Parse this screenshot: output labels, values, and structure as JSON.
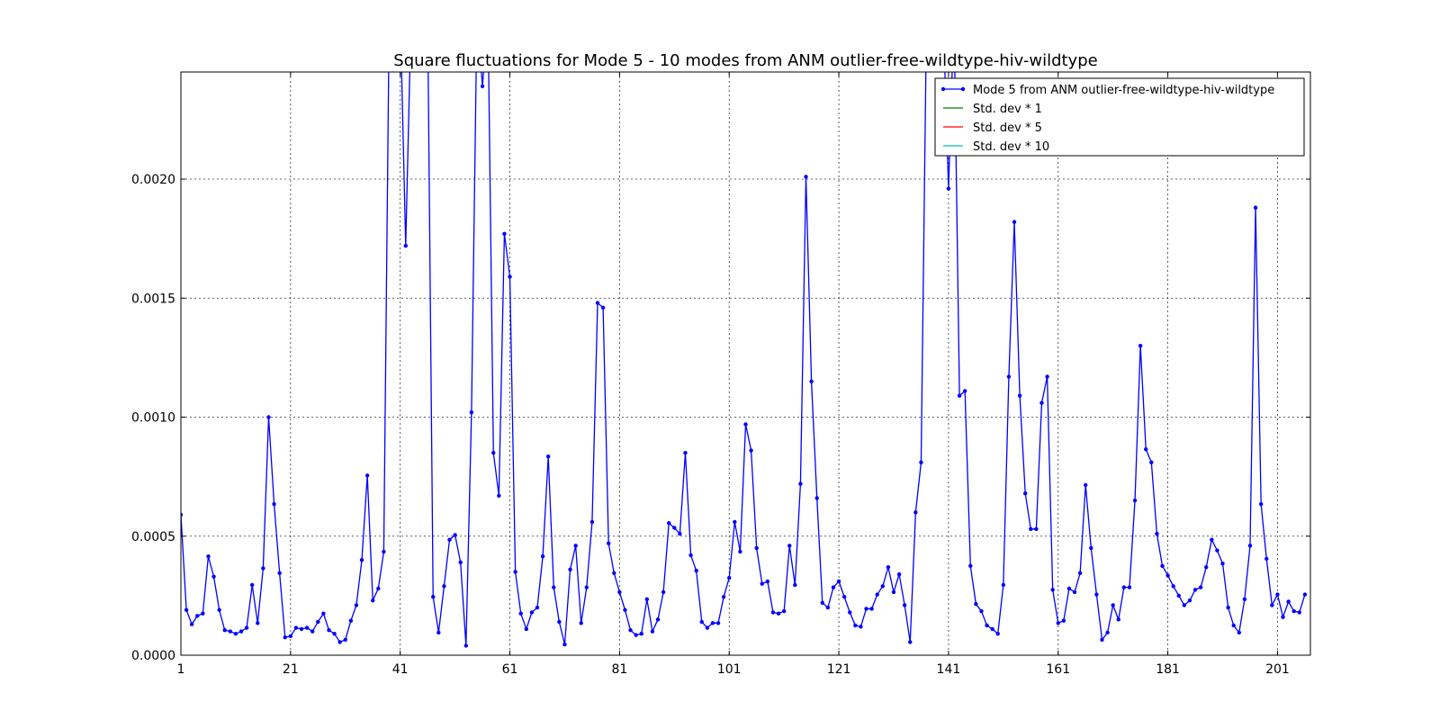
{
  "chart_data": {
    "type": "line",
    "title": "Square fluctuations for Mode 5 - 10 modes from ANM outlier-free-wildtype-hiv-wildtype",
    "xlabel": "",
    "ylabel": "",
    "xlim": [
      1,
      207
    ],
    "ylim": [
      0,
      0.00245
    ],
    "x_ticks": [
      1,
      21,
      41,
      61,
      81,
      101,
      121,
      141,
      161,
      181,
      201
    ],
    "x_tick_labels": [
      "1",
      "21",
      "41",
      "61",
      "81",
      "101",
      "121",
      "141",
      "161",
      "181",
      "201"
    ],
    "y_ticks": [
      0,
      0.0005,
      0.001,
      0.0015,
      0.002
    ],
    "y_tick_labels": [
      "0.0000",
      "0.0005",
      "0.0010",
      "0.0015",
      "0.0020"
    ],
    "grid": true,
    "legend_position": "top-right",
    "series": [
      {
        "name": "Mode 5 from ANM outlier-free-wildtype-hiv-wildtype",
        "color": "#0000ff",
        "marker": "dot",
        "x_start": 1,
        "values": [
          0.00059,
          0.00019,
          0.00013,
          0.000165,
          0.000175,
          0.000415,
          0.00033,
          0.00019,
          0.000105,
          0.0001,
          9e-05,
          0.0001,
          0.000115,
          0.000295,
          0.000135,
          0.000365,
          0.001,
          0.000635,
          0.000345,
          7.5e-05,
          8e-05,
          0.000115,
          0.00011,
          0.000115,
          0.0001,
          0.00014,
          0.000175,
          0.000105,
          9e-05,
          5.5e-05,
          6.5e-05,
          0.000145,
          0.00021,
          0.0004,
          0.000755,
          0.00023,
          0.00028,
          0.000435,
          0.0027,
          0.0027,
          0.0027,
          0.00172,
          0.0027,
          0.0027,
          0.0027,
          0.0027,
          0.000245,
          9.5e-05,
          0.00029,
          0.000485,
          0.000505,
          0.00039,
          4e-05,
          0.00102,
          0.0027,
          0.00239,
          0.0027,
          0.00085,
          0.00067,
          0.00177,
          0.00159,
          0.00035,
          0.000175,
          0.00011,
          0.00018,
          0.0002,
          0.000415,
          0.000835,
          0.000285,
          0.00014,
          4.5e-05,
          0.00036,
          0.00046,
          0.000135,
          0.000285,
          0.00056,
          0.00148,
          0.00146,
          0.00047,
          0.000345,
          0.000265,
          0.00019,
          0.000105,
          8.5e-05,
          9e-05,
          0.000235,
          0.0001,
          0.00015,
          0.000265,
          0.000555,
          0.000535,
          0.00051,
          0.00085,
          0.00042,
          0.000355,
          0.00014,
          0.000115,
          0.000135,
          0.000135,
          0.000245,
          0.000325,
          0.00056,
          0.000435,
          0.00097,
          0.00086,
          0.00045,
          0.0003,
          0.00031,
          0.00018,
          0.000175,
          0.000185,
          0.00046,
          0.000295,
          0.00072,
          0.00201,
          0.00115,
          0.00066,
          0.00022,
          0.0002,
          0.000285,
          0.00031,
          0.000245,
          0.00018,
          0.000125,
          0.00012,
          0.000195,
          0.000195,
          0.000255,
          0.00029,
          0.00037,
          0.000265,
          0.00034,
          0.00021,
          5.5e-05,
          0.0006,
          0.00081,
          0.0027,
          0.0027,
          0.0027,
          0.0027,
          0.00196,
          0.0027,
          0.00109,
          0.00111,
          0.000375,
          0.000215,
          0.000185,
          0.000125,
          0.00011,
          9e-05,
          0.000295,
          0.00117,
          0.00182,
          0.00109,
          0.00068,
          0.00053,
          0.00053,
          0.00106,
          0.00117,
          0.000275,
          0.000135,
          0.000145,
          0.00028,
          0.000265,
          0.000345,
          0.000715,
          0.00045,
          0.000255,
          6.5e-05,
          9.5e-05,
          0.00021,
          0.00015,
          0.000285,
          0.000285,
          0.00065,
          0.0013,
          0.000865,
          0.00081,
          0.00051,
          0.000375,
          0.000335,
          0.00029,
          0.00025,
          0.00021,
          0.00023,
          0.000275,
          0.000285,
          0.00037,
          0.000485,
          0.00044,
          0.000385,
          0.0002,
          0.000125,
          9.5e-05,
          0.000235,
          0.00046,
          0.00188,
          0.000635,
          0.000405,
          0.00021,
          0.000255,
          0.00016,
          0.000225,
          0.000185,
          0.00018,
          0.000255
        ]
      }
    ],
    "legend": [
      {
        "label": "Mode 5 from ANM outlier-free-wildtype-hiv-wildtype",
        "color": "#0000ff",
        "marker": true
      },
      {
        "label": "Std. dev * 1",
        "color": "#008000",
        "marker": false
      },
      {
        "label": "Std. dev * 5",
        "color": "#ff0000",
        "marker": false
      },
      {
        "label": "Std. dev * 10",
        "color": "#00bfbf",
        "marker": false
      }
    ]
  }
}
